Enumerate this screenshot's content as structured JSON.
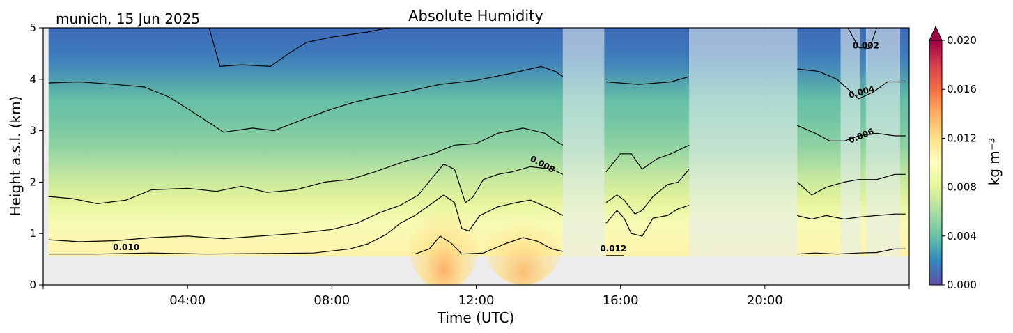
{
  "chart_data": {
    "type": "heatmap",
    "title": "Absolute Humidity",
    "subtitle": "munich, 15 Jun 2025",
    "xlabel": "Time (UTC)",
    "ylabel": "Height a.s.l. (km)",
    "xlim": [
      0,
      24
    ],
    "ylim": [
      0,
      5
    ],
    "x_ticks": [
      {
        "value": 4,
        "label": "04:00"
      },
      {
        "value": 8,
        "label": "08:00"
      },
      {
        "value": 12,
        "label": "12:00"
      },
      {
        "value": 16,
        "label": "16:00"
      },
      {
        "value": 20,
        "label": "20:00"
      }
    ],
    "y_ticks": [
      {
        "value": 0,
        "label": "0"
      },
      {
        "value": 1,
        "label": "1"
      },
      {
        "value": 2,
        "label": "2"
      },
      {
        "value": 3,
        "label": "3"
      },
      {
        "value": 4,
        "label": "4"
      },
      {
        "value": 5,
        "label": "5"
      }
    ],
    "no_data_below_km": 0.55,
    "colorbar": {
      "label": "kg m⁻³",
      "range": [
        0.0,
        0.02
      ],
      "extend": "max",
      "ticks": [
        {
          "value": 0.0,
          "label": "0.000"
        },
        {
          "value": 0.004,
          "label": "0.004"
        },
        {
          "value": 0.008,
          "label": "0.008"
        },
        {
          "value": 0.012,
          "label": "0.012"
        },
        {
          "value": 0.016,
          "label": "0.016"
        },
        {
          "value": 0.02,
          "label": "0.020"
        }
      ],
      "colors": [
        "#5e4fa2",
        "#3288bd",
        "#66c2a5",
        "#abdda4",
        "#e6f598",
        "#ffffbf",
        "#fee08b",
        "#fdae61",
        "#f46d43",
        "#d53e4f",
        "#9e0142"
      ]
    },
    "contour_labels": [
      {
        "text": "0.002",
        "x": 22.8,
        "y": 4.6,
        "angle": 0
      },
      {
        "text": "0.004",
        "x": 22.7,
        "y": 3.7,
        "angle": -15
      },
      {
        "text": "0.006",
        "x": 22.7,
        "y": 2.85,
        "angle": -22
      },
      {
        "text": "0.008",
        "x": 13.8,
        "y": 2.3,
        "angle": 28
      },
      {
        "text": "0.010",
        "x": 2.3,
        "y": 0.68,
        "angle": 0
      },
      {
        "text": "0.012",
        "x": 15.8,
        "y": 0.65,
        "angle": 0
      }
    ],
    "contours": [
      {
        "level": 0.002,
        "segments": [
          [
            [
              4.6,
              5.0
            ],
            [
              4.9,
              4.25
            ],
            [
              5.5,
              4.28
            ],
            [
              6.3,
              4.25
            ],
            [
              6.8,
              4.5
            ],
            [
              7.3,
              4.72
            ],
            [
              8.0,
              4.82
            ],
            [
              9.0,
              4.92
            ],
            [
              9.6,
              5.0
            ]
          ],
          [
            [
              22.3,
              5.0
            ],
            [
              22.6,
              4.62
            ],
            [
              22.9,
              4.6
            ],
            [
              23.1,
              5.0
            ]
          ]
        ]
      },
      {
        "level": 0.004,
        "segments": [
          [
            [
              0.15,
              3.93
            ],
            [
              1.0,
              3.95
            ],
            [
              2.0,
              3.9
            ],
            [
              2.8,
              3.85
            ],
            [
              3.5,
              3.65
            ],
            [
              4.5,
              3.2
            ],
            [
              5.0,
              2.97
            ],
            [
              5.8,
              3.05
            ],
            [
              6.4,
              3.0
            ],
            [
              7.2,
              3.22
            ],
            [
              8.0,
              3.42
            ],
            [
              8.6,
              3.55
            ],
            [
              9.2,
              3.65
            ],
            [
              10.0,
              3.75
            ],
            [
              11.0,
              3.9
            ],
            [
              12.0,
              3.98
            ],
            [
              13.0,
              4.12
            ],
            [
              13.8,
              4.25
            ],
            [
              14.2,
              4.15
            ],
            [
              14.4,
              4.05
            ]
          ],
          [
            [
              15.6,
              3.95
            ],
            [
              16.5,
              3.9
            ],
            [
              17.4,
              3.95
            ],
            [
              17.9,
              4.05
            ]
          ],
          [
            [
              20.9,
              4.2
            ],
            [
              21.5,
              4.15
            ],
            [
              22.0,
              4.0
            ],
            [
              22.6,
              3.62
            ],
            [
              23.0,
              3.75
            ],
            [
              23.4,
              3.95
            ],
            [
              23.9,
              3.95
            ]
          ]
        ]
      },
      {
        "level": 0.006,
        "segments": [
          [
            [
              0.15,
              1.72
            ],
            [
              0.8,
              1.68
            ],
            [
              1.5,
              1.58
            ],
            [
              2.3,
              1.65
            ],
            [
              3.0,
              1.85
            ],
            [
              4.0,
              1.88
            ],
            [
              4.8,
              1.82
            ],
            [
              5.5,
              1.92
            ],
            [
              6.2,
              1.8
            ],
            [
              7.0,
              1.85
            ],
            [
              7.8,
              2.0
            ],
            [
              8.5,
              2.05
            ],
            [
              9.2,
              2.2
            ],
            [
              10.0,
              2.4
            ],
            [
              10.8,
              2.55
            ],
            [
              11.4,
              2.72
            ],
            [
              12.0,
              2.75
            ],
            [
              12.6,
              2.95
            ],
            [
              13.3,
              3.05
            ],
            [
              13.9,
              2.95
            ],
            [
              14.2,
              2.8
            ],
            [
              14.4,
              2.72
            ]
          ],
          [
            [
              15.6,
              2.2
            ],
            [
              16.0,
              2.55
            ],
            [
              16.3,
              2.55
            ],
            [
              16.6,
              2.25
            ],
            [
              17.0,
              2.45
            ],
            [
              17.4,
              2.55
            ],
            [
              17.9,
              2.72
            ]
          ],
          [
            [
              20.9,
              3.1
            ],
            [
              21.4,
              2.95
            ],
            [
              21.8,
              2.8
            ],
            [
              22.2,
              2.8
            ],
            [
              22.6,
              2.9
            ],
            [
              23.1,
              2.95
            ],
            [
              23.6,
              2.9
            ],
            [
              23.9,
              2.9
            ]
          ]
        ]
      },
      {
        "level": 0.008,
        "segments": [
          [
            [
              0.15,
              0.88
            ],
            [
              1.0,
              0.84
            ],
            [
              2.0,
              0.86
            ],
            [
              3.0,
              0.92
            ],
            [
              4.0,
              0.95
            ],
            [
              5.0,
              0.9
            ],
            [
              6.0,
              0.95
            ],
            [
              7.0,
              1.0
            ],
            [
              8.0,
              1.08
            ],
            [
              8.7,
              1.2
            ],
            [
              9.3,
              1.4
            ],
            [
              9.9,
              1.55
            ],
            [
              10.4,
              1.75
            ],
            [
              10.8,
              2.1
            ],
            [
              11.1,
              2.35
            ],
            [
              11.4,
              2.25
            ],
            [
              11.7,
              1.6
            ],
            [
              11.9,
              1.7
            ],
            [
              12.2,
              2.05
            ],
            [
              12.6,
              2.15
            ],
            [
              13.0,
              2.2
            ],
            [
              13.5,
              2.3
            ],
            [
              14.1,
              2.25
            ],
            [
              14.4,
              2.15
            ]
          ],
          [
            [
              15.6,
              1.6
            ],
            [
              15.9,
              1.75
            ],
            [
              16.1,
              1.65
            ],
            [
              16.4,
              1.38
            ],
            [
              16.6,
              1.45
            ],
            [
              16.9,
              1.72
            ],
            [
              17.3,
              1.95
            ],
            [
              17.6,
              2.0
            ],
            [
              17.9,
              2.25
            ]
          ],
          [
            [
              20.9,
              2.0
            ],
            [
              21.3,
              1.75
            ],
            [
              21.7,
              1.9
            ],
            [
              22.2,
              2.0
            ],
            [
              22.6,
              2.05
            ],
            [
              23.1,
              2.05
            ],
            [
              23.6,
              2.15
            ],
            [
              23.9,
              2.15
            ]
          ]
        ]
      },
      {
        "level": 0.01,
        "segments": [
          [
            [
              0.15,
              0.6
            ],
            [
              1.5,
              0.6
            ],
            [
              3.0,
              0.62
            ],
            [
              4.5,
              0.6
            ],
            [
              6.0,
              0.61
            ],
            [
              7.5,
              0.62
            ],
            [
              8.5,
              0.7
            ],
            [
              9.0,
              0.8
            ],
            [
              9.5,
              0.98
            ],
            [
              9.9,
              1.2
            ],
            [
              10.3,
              1.35
            ],
            [
              10.7,
              1.55
            ],
            [
              11.1,
              1.75
            ],
            [
              11.4,
              1.6
            ],
            [
              11.6,
              1.1
            ],
            [
              11.8,
              1.05
            ],
            [
              12.1,
              1.35
            ],
            [
              12.6,
              1.52
            ],
            [
              13.1,
              1.6
            ],
            [
              13.5,
              1.65
            ],
            [
              14.0,
              1.5
            ],
            [
              14.4,
              1.35
            ]
          ],
          [
            [
              15.6,
              1.2
            ],
            [
              15.9,
              1.45
            ],
            [
              16.1,
              1.3
            ],
            [
              16.3,
              1.0
            ],
            [
              16.6,
              0.95
            ],
            [
              16.9,
              1.3
            ],
            [
              17.3,
              1.35
            ],
            [
              17.6,
              1.48
            ],
            [
              17.9,
              1.55
            ]
          ],
          [
            [
              20.9,
              1.35
            ],
            [
              21.3,
              1.28
            ],
            [
              21.7,
              1.35
            ],
            [
              22.2,
              1.28
            ],
            [
              22.6,
              1.32
            ],
            [
              23.1,
              1.35
            ],
            [
              23.6,
              1.38
            ],
            [
              23.9,
              1.38
            ]
          ]
        ]
      },
      {
        "level": 0.012,
        "segments": [
          [
            [
              10.3,
              0.6
            ],
            [
              10.7,
              0.7
            ],
            [
              11.0,
              0.95
            ],
            [
              11.3,
              0.82
            ],
            [
              11.6,
              0.6
            ],
            [
              12.2,
              0.62
            ],
            [
              12.8,
              0.8
            ],
            [
              13.3,
              0.92
            ],
            [
              13.7,
              0.85
            ],
            [
              14.1,
              0.7
            ],
            [
              14.4,
              0.65
            ]
          ],
          [
            [
              15.6,
              0.57
            ],
            [
              16.1,
              0.57
            ]
          ],
          [
            [
              20.9,
              0.6
            ],
            [
              21.4,
              0.62
            ],
            [
              22.0,
              0.6
            ],
            [
              22.6,
              0.62
            ],
            [
              23.1,
              0.63
            ],
            [
              23.6,
              0.7
            ],
            [
              23.9,
              0.7
            ]
          ]
        ]
      }
    ]
  }
}
